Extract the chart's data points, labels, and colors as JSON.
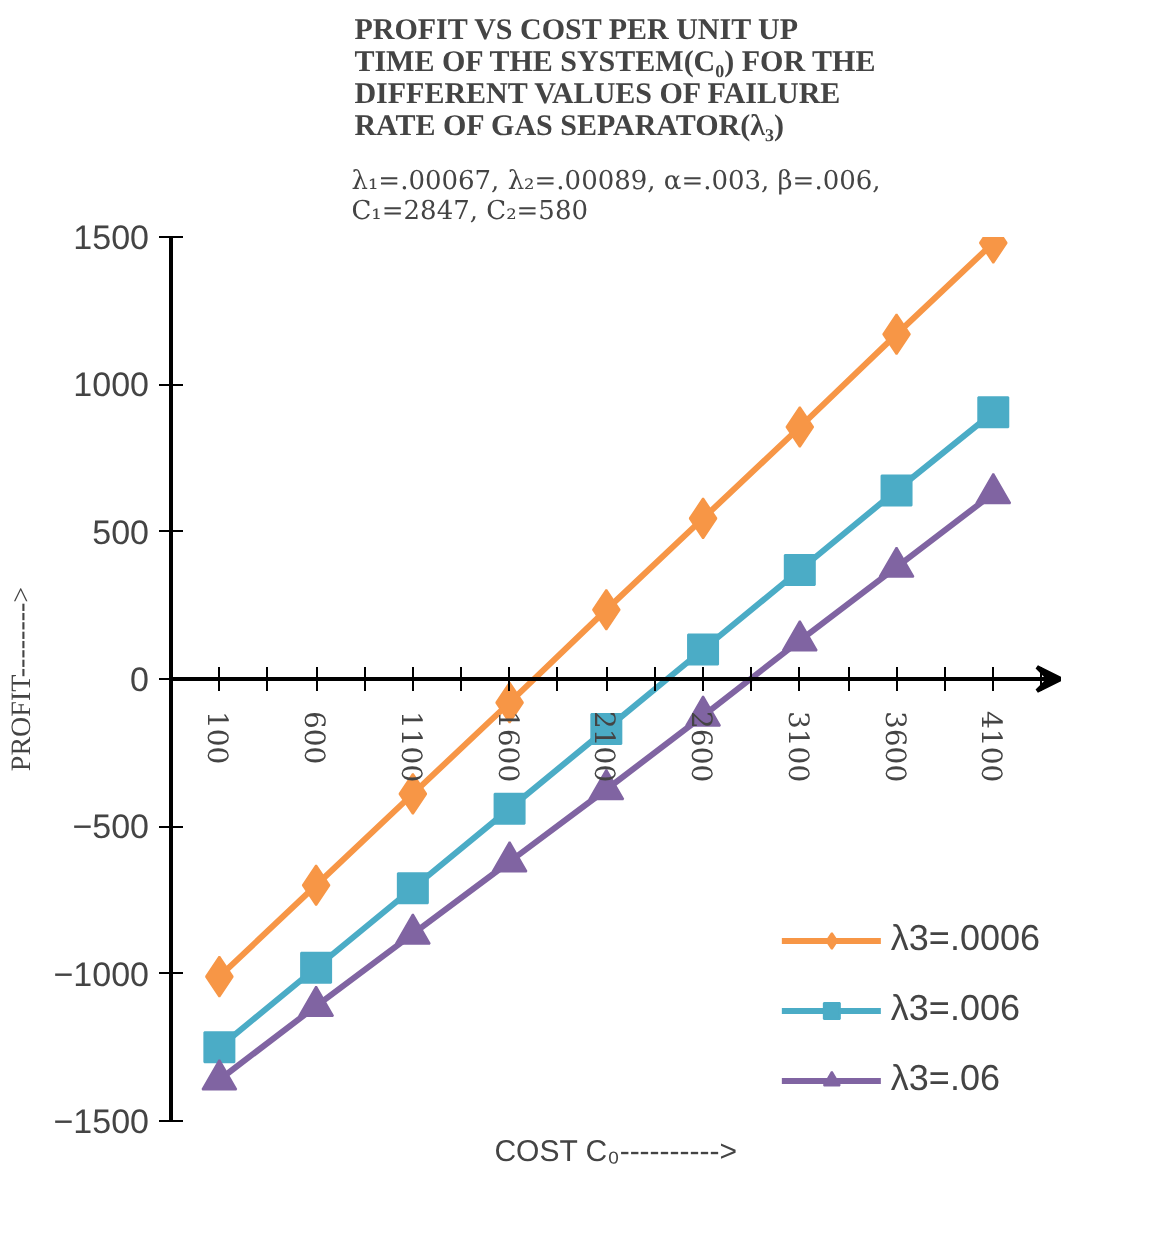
{
  "chart_data": {
    "type": "line",
    "title": "PROFIT VS COST PER UNIT UP TIME OF THE SYSTEM(C₀) FOR THE DIFFERENT VALUES OF FAILURE RATE OF GAS SEPARATOR(λ₃)",
    "subtitle": "λ₁=.00067, λ₂=.00089, α=.003, β=.006, C₁=2847, C₂=580",
    "xlabel": "COST C₀---------->",
    "ylabel": "PROFIT-------->",
    "categories": [
      "100",
      "600",
      "1100",
      "1600",
      "2100",
      "2600",
      "3100",
      "3600",
      "4100"
    ],
    "series": [
      {
        "name": "λ3=.0006",
        "color": "#f79646",
        "marker": "diamond",
        "values": [
          -1010,
          -700,
          -390,
          -80,
          235,
          545,
          855,
          1170,
          1480
        ]
      },
      {
        "name": "λ3=.006",
        "color": "#4bacc6",
        "marker": "square",
        "values": [
          -1250,
          -980,
          -710,
          -440,
          -170,
          100,
          370,
          640,
          905
        ]
      },
      {
        "name": "λ3=.06",
        "color": "#8064a2",
        "marker": "triangle",
        "values": [
          -1360,
          -1110,
          -865,
          -620,
          -375,
          -125,
          130,
          380,
          630
        ]
      }
    ],
    "ylim": [
      -1500,
      1500
    ],
    "yticks": [
      -1500,
      -1000,
      -500,
      0,
      500,
      1000,
      1500
    ],
    "grid": false,
    "legend": "bottom right",
    "line_style": "solid"
  }
}
